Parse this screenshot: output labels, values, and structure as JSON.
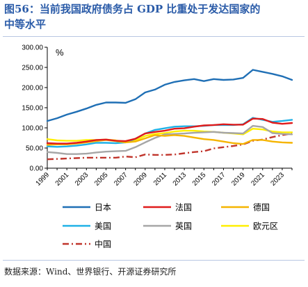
{
  "figure": {
    "title_line1": "图56：当前我国政府债务占 GDP 比重处于发达国家的",
    "title_line2": "中等水平",
    "source": "数据来源：Wind、世界银行、开源证券研究所"
  },
  "chart_data": {
    "type": "line",
    "unit_label": "%",
    "ylim": [
      0,
      300
    ],
    "yticks": [
      "0.00",
      "50.00",
      "100.00",
      "150.00",
      "200.00",
      "250.00",
      "300.00"
    ],
    "x": [
      1999,
      2000,
      2001,
      2002,
      2003,
      2004,
      2005,
      2006,
      2007,
      2008,
      2009,
      2010,
      2011,
      2012,
      2013,
      2014,
      2015,
      2016,
      2017,
      2018,
      2019,
      2020,
      2021,
      2022,
      2023,
      2024
    ],
    "xtick_labels": [
      "1999",
      "2001",
      "2003",
      "2005",
      "2007",
      "2009",
      "2011",
      "2013",
      "2015",
      "2017",
      "2019",
      "2021",
      "2023"
    ],
    "grid": false,
    "legend_position": "bottom",
    "series": [
      {
        "name": "日本",
        "color": "#1f6fb5",
        "dash": "solid",
        "values": [
          117,
          124,
          133,
          140,
          148,
          157,
          163,
          163,
          162,
          171,
          188,
          195,
          207,
          214,
          218,
          221,
          216,
          221,
          219,
          220,
          224,
          244,
          239,
          234,
          228,
          219
        ]
      },
      {
        "name": "法国",
        "color": "#e01b1b",
        "dash": "solid",
        "values": [
          62,
          61,
          61,
          63,
          66,
          70,
          71,
          68,
          67,
          73,
          86,
          90,
          93,
          98,
          99,
          103,
          106,
          107,
          109,
          108,
          108,
          123,
          122,
          113,
          110,
          112
        ]
      },
      {
        "name": "德国",
        "color": "#f5b400",
        "dash": "solid",
        "values": [
          58,
          59,
          59,
          61,
          64,
          67,
          70,
          67,
          64,
          66,
          74,
          82,
          80,
          82,
          80,
          76,
          72,
          70,
          66,
          62,
          60,
          70,
          70,
          66,
          64,
          63
        ]
      },
      {
        "name": "美国",
        "color": "#1fb1e6",
        "dash": "solid",
        "values": [
          54,
          53,
          54,
          56,
          59,
          63,
          63,
          62,
          64,
          73,
          86,
          95,
          99,
          103,
          104,
          104,
          105,
          107,
          107,
          107,
          109,
          125,
          120,
          115,
          117,
          120
        ]
      },
      {
        "name": "英国",
        "color": "#a6a6a6",
        "dash": "solid",
        "values": [
          40,
          38,
          35,
          35,
          36,
          39,
          41,
          42,
          43,
          52,
          64,
          75,
          84,
          85,
          86,
          88,
          89,
          90,
          88,
          87,
          86,
          105,
          102,
          87,
          85,
          84
        ]
      },
      {
        "name": "欧元区",
        "color": "#ffef00",
        "dash": "solid",
        "values": [
          72,
          69,
          68,
          68,
          70,
          70,
          71,
          69,
          65,
          69,
          80,
          85,
          87,
          91,
          93,
          93,
          91,
          90,
          88,
          86,
          84,
          98,
          96,
          91,
          89,
          89
        ]
      },
      {
        "name": "中国",
        "color": "#c0342b",
        "dash": "dashdot",
        "values": [
          22,
          23,
          24,
          25,
          26,
          26,
          26,
          26,
          29,
          27,
          34,
          33,
          33,
          34,
          37,
          40,
          42,
          49,
          52,
          55,
          59,
          68,
          71,
          77,
          82,
          86
        ]
      }
    ]
  }
}
